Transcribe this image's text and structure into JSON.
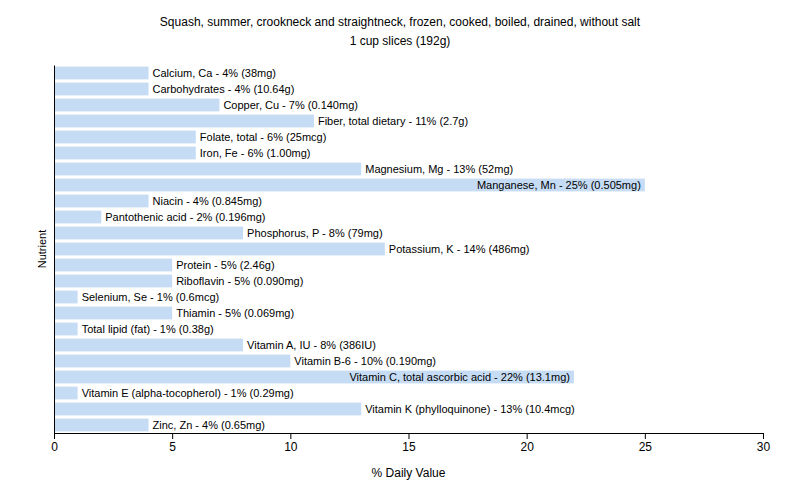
{
  "chart_data": {
    "type": "bar",
    "orientation": "horizontal",
    "title": "Squash, summer, crookneck and straightneck, frozen, cooked, boiled, drained, without salt",
    "subtitle": "1 cup slices (192g)",
    "x_label": "% Daily Value",
    "y_label": "Nutrient",
    "categories": [
      "Calcium, Ca - 4% (38mg)",
      "Carbohydrates - 4% (10.64g)",
      "Copper, Cu - 7% (0.140mg)",
      "Fiber, total dietary - 11% (2.7g)",
      "Folate, total - 6% (25mcg)",
      "Iron, Fe - 6% (1.00mg)",
      "Magnesium, Mg - 13% (52mg)",
      "Manganese, Mn - 25% (0.505mg)",
      "Niacin - 4% (0.845mg)",
      "Pantothenic acid - 2% (0.196mg)",
      "Phosphorus, P - 8% (79mg)",
      "Potassium, K - 14% (486mg)",
      "Protein - 5% (2.46g)",
      "Riboflavin - 5% (0.090mg)",
      "Selenium, Se - 1% (0.6mcg)",
      "Thiamin - 5% (0.069mg)",
      "Total lipid (fat) - 1% (0.38g)",
      "Vitamin A, IU - 8% (386IU)",
      "Vitamin B-6 - 10% (0.190mg)",
      "Vitamin C, total ascorbic acid - 22% (13.1mg)",
      "Vitamin E (alpha-tocopherol) - 1% (0.29mg)",
      "Vitamin K (phylloquinone) - 13% (10.4mcg)",
      "Zinc, Zn - 4% (0.65mg)"
    ],
    "values": [
      4,
      4,
      7,
      11,
      6,
      6,
      13,
      25,
      4,
      2,
      8,
      14,
      5,
      5,
      1,
      5,
      1,
      8,
      10,
      22,
      1,
      13,
      4
    ],
    "color": "#c6dcf5",
    "xlim": [
      0,
      30
    ],
    "xticks": [
      0,
      5,
      10,
      15,
      20,
      25,
      30
    ],
    "grid": false,
    "tick_labels": "x"
  }
}
